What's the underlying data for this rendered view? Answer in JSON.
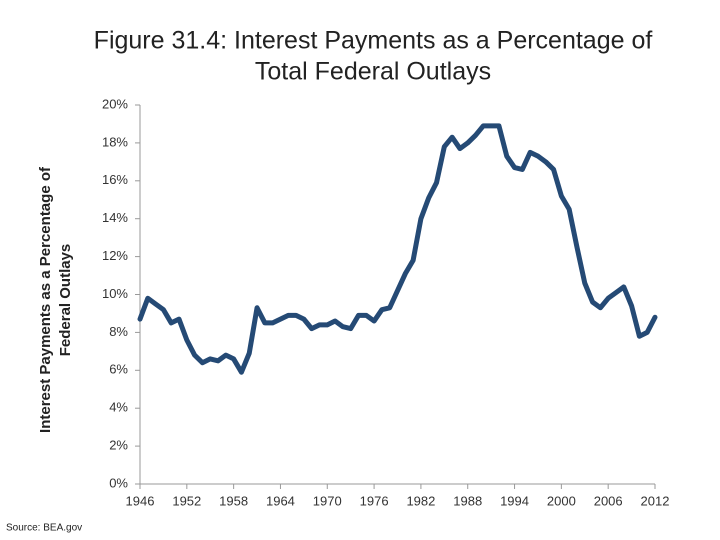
{
  "chart_data": {
    "type": "line",
    "title": [
      "Figure 31.4: Interest Payments as a Percentage of",
      "Total Federal Outlays"
    ],
    "ylabel": [
      "Interest Payments as a Percentage of",
      "Federal Outlays"
    ],
    "source": "Source: BEA.gov",
    "x": [
      1946,
      1947,
      1948,
      1949,
      1950,
      1951,
      1952,
      1953,
      1954,
      1955,
      1956,
      1957,
      1958,
      1959,
      1960,
      1961,
      1962,
      1963,
      1964,
      1965,
      1966,
      1967,
      1968,
      1969,
      1970,
      1971,
      1972,
      1973,
      1974,
      1975,
      1976,
      1977,
      1978,
      1979,
      1980,
      1981,
      1982,
      1983,
      1984,
      1985,
      1986,
      1987,
      1988,
      1989,
      1990,
      1991,
      1992,
      1993,
      1994,
      1995,
      1996,
      1997,
      1998,
      1999,
      2000,
      2001,
      2002,
      2003,
      2004,
      2005,
      2006,
      2007,
      2008,
      2009,
      2010,
      2011,
      2012
    ],
    "series": [
      {
        "name": "Interest Payments",
        "color": "#254a75",
        "values": [
          8.7,
          9.8,
          9.5,
          9.2,
          8.5,
          8.7,
          7.6,
          6.8,
          6.4,
          6.6,
          6.5,
          6.8,
          6.6,
          5.9,
          6.9,
          9.3,
          8.5,
          8.5,
          8.7,
          8.9,
          8.9,
          8.7,
          8.2,
          8.4,
          8.4,
          8.6,
          8.3,
          8.2,
          8.9,
          8.9,
          8.6,
          9.2,
          9.3,
          10.2,
          11.1,
          11.8,
          14.0,
          15.1,
          15.9,
          17.8,
          18.3,
          17.7,
          18.0,
          18.4,
          18.9,
          18.9,
          18.9,
          17.3,
          16.7,
          16.6,
          17.5,
          17.3,
          17.0,
          16.6,
          15.2,
          14.5,
          12.5,
          10.6,
          9.6,
          9.3,
          9.8,
          10.1,
          10.4,
          9.4,
          7.8,
          8.0,
          8.8
        ]
      }
    ],
    "xlim": [
      1946,
      2012
    ],
    "xticks": [
      1946,
      1952,
      1958,
      1964,
      1970,
      1976,
      1982,
      1988,
      1994,
      2000,
      2006,
      2012
    ],
    "ylim": [
      0,
      20
    ],
    "yticks": [
      {
        "value": 0,
        "label": "0%"
      },
      {
        "value": 2,
        "label": "2%"
      },
      {
        "value": 4,
        "label": "4%"
      },
      {
        "value": 6,
        "label": "6%"
      },
      {
        "value": 8,
        "label": "8%"
      },
      {
        "value": 10,
        "label": "10%"
      },
      {
        "value": 12,
        "label": "12%"
      },
      {
        "value": 14,
        "label": "14%"
      },
      {
        "value": 16,
        "label": "16%"
      },
      {
        "value": 18,
        "label": "18%"
      },
      {
        "value": 20,
        "label": "20%"
      }
    ],
    "grid": false
  }
}
